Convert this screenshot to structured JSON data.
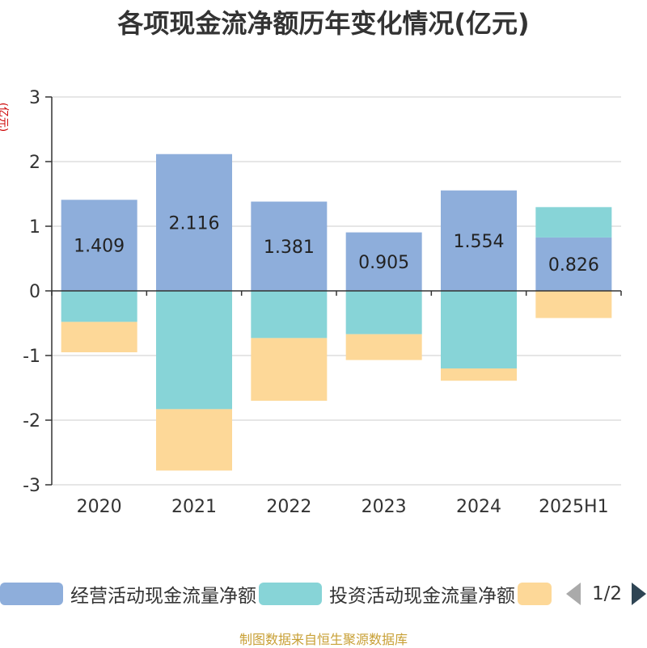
{
  "title": "各项现金流净额历年变化情况(亿元)",
  "chart_data": {
    "type": "bar",
    "stacked": true,
    "title": "各项现金流净额历年变化情况(亿元)",
    "ylabel": "(亿元)",
    "ylim": [
      -3,
      3
    ],
    "yticks": [
      3,
      2,
      1,
      0,
      -1,
      -2,
      -3
    ],
    "categories": [
      "2020",
      "2021",
      "2022",
      "2023",
      "2024",
      "2025H1"
    ],
    "grid": true,
    "legend_position": "bottom",
    "series": [
      {
        "name": "经营活动现金流量净额",
        "color": "#8eaedb",
        "values": [
          1.409,
          2.116,
          1.381,
          0.905,
          1.554,
          0.826
        ],
        "show_labels": true
      },
      {
        "name": "投资活动现金流量净额",
        "color": "#87d4d7",
        "values": [
          -0.48,
          -1.83,
          -0.73,
          -0.67,
          -1.2,
          0.47
        ],
        "show_labels": false
      },
      {
        "name": "",
        "color": "#fdd898",
        "values": [
          -0.47,
          -0.95,
          -0.97,
          -0.4,
          -0.19,
          -0.42
        ],
        "show_labels": false
      }
    ]
  },
  "legend": {
    "items": [
      {
        "label": "经营活动现金流量净额",
        "color": "#8eaedb"
      },
      {
        "label": "投资活动现金流量净额",
        "color": "#87d4d7"
      },
      {
        "label": "",
        "color": "#fdd898"
      }
    ],
    "page_indicator": "1/2"
  },
  "source": "制图数据来自恒生聚源数据库"
}
